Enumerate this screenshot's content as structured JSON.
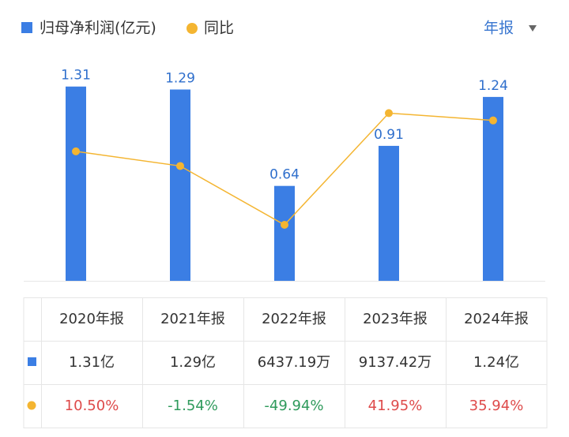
{
  "chart_data": {
    "type": "bar-line",
    "categories": [
      "2020年报",
      "2021年报",
      "2022年报",
      "2023年报",
      "2024年报"
    ],
    "series": [
      {
        "name": "归母净利润(亿元)",
        "color": "#3b7ee4",
        "values": [
          1.31,
          1.29,
          0.64,
          0.91,
          1.24
        ]
      },
      {
        "name": "同比",
        "color": "#f4b531",
        "axis": "y2",
        "values": [
          10.5,
          -1.54,
          -49.94,
          41.95,
          35.94
        ],
        "value_labels": [
          "10.50%",
          "-1.54%",
          "-49.94%",
          "41.95%",
          "35.94%"
        ]
      }
    ],
    "ylim": [
      0,
      1.5
    ],
    "y2lim": [
      -96,
      87
    ]
  },
  "toggle": "年报",
  "table": {
    "rows": [
      [
        "1.31亿",
        "1.29亿",
        "6437.19万",
        "9137.42万",
        "1.24亿"
      ]
    ]
  }
}
